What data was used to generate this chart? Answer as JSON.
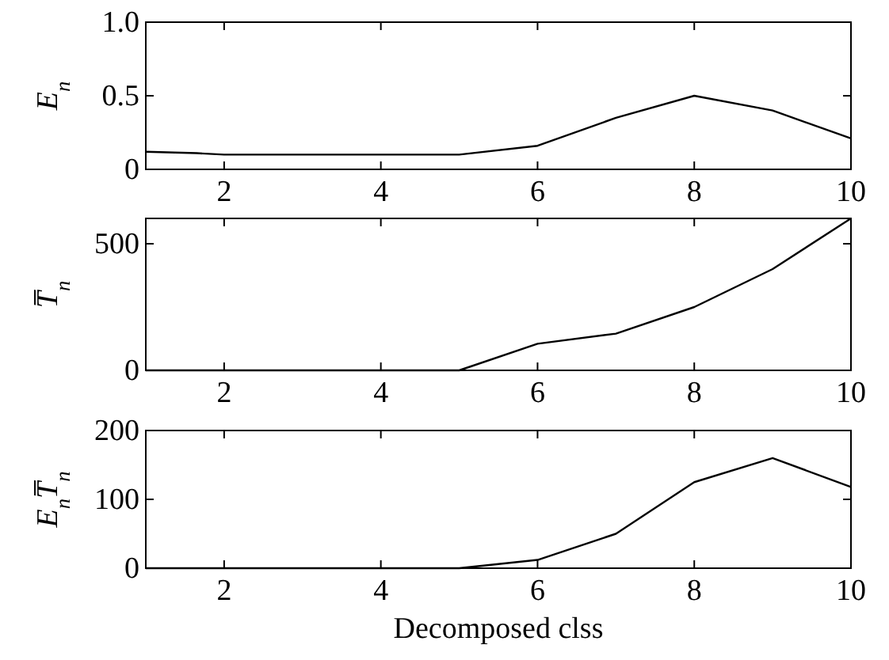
{
  "chart_data": [
    {
      "type": "line",
      "ylabel": "E$_{n}$",
      "x": [
        1,
        1.65,
        2,
        3,
        4,
        5,
        6,
        7,
        8,
        9,
        10
      ],
      "xlim": [
        1,
        10
      ],
      "xticks": [
        2,
        4,
        6,
        8,
        10
      ],
      "ylim": [
        0,
        1
      ],
      "yticks": [
        0,
        0.5,
        {
          "value": 1,
          "label": "1.0"
        }
      ],
      "grid": false,
      "series": [
        {
          "color": "#000000",
          "values": [
            0.12,
            0.11,
            0.1,
            0.1,
            0.1,
            0.1,
            0.16,
            0.35,
            0.5,
            0.4,
            0.21
          ]
        }
      ]
    },
    {
      "type": "line",
      "ylabel": "T̅$_{n}$",
      "x": [
        1,
        2,
        3,
        4,
        5,
        6,
        7,
        8,
        9,
        10
      ],
      "xlim": [
        1,
        10
      ],
      "xticks": [
        2,
        4,
        6,
        8,
        10
      ],
      "ylim": [
        0,
        600
      ],
      "yticks": [
        0,
        500
      ],
      "grid": false,
      "series": [
        {
          "color": "#000000",
          "values": [
            0,
            0,
            0,
            0,
            0,
            105,
            145,
            250,
            400,
            600
          ]
        }
      ]
    },
    {
      "type": "line",
      "ylabel": "E$_{n}$T̅$_{n}$",
      "xlabel": "Decomposed clss",
      "x": [
        1,
        2,
        3,
        4,
        5,
        6,
        7,
        8,
        9,
        10
      ],
      "xlim": [
        1,
        10
      ],
      "xticks": [
        2,
        4,
        6,
        8,
        10
      ],
      "ylim": [
        0,
        200
      ],
      "yticks": [
        0,
        100,
        200
      ],
      "grid": false,
      "series": [
        {
          "color": "#000000",
          "values": [
            0,
            0,
            0,
            0,
            0,
            12,
            50,
            125,
            160,
            118
          ]
        }
      ]
    }
  ]
}
